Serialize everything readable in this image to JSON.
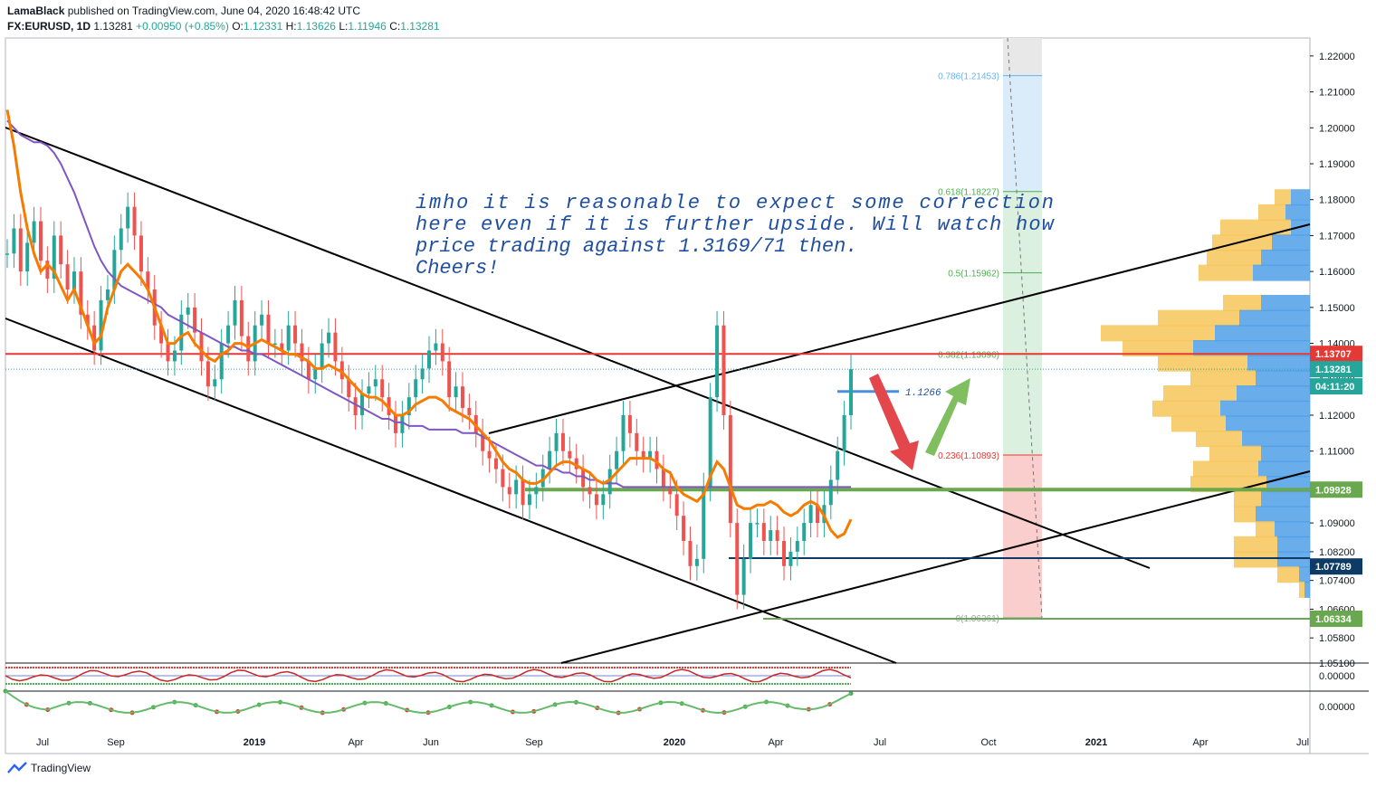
{
  "header": {
    "author": "LamaBlack",
    "published": "published on TradingView.com, June 04, 2020 16:48:42 UTC",
    "symbol": "FX:EURUSD, 1D",
    "last": "1.13281",
    "change": "+0.00950 (+0.85%)",
    "o_label": "O:",
    "o": "1.12331",
    "h_label": "H:",
    "h": "1.13626",
    "l_label": "L:",
    "l": "1.11946",
    "c_label": "C:",
    "c": "1.13281"
  },
  "footer": {
    "brand": "TradingView"
  },
  "colors": {
    "up": "#26a69a",
    "down": "#ef5350",
    "ema": "#f57c00",
    "sma": "#7e57c2",
    "resistance": "#e53935",
    "support": "#6aa84f",
    "navy": "#0d3b66",
    "fib_red": "#f8c9c6",
    "fib_green": "#d7eedb",
    "fib_blue": "#d6eaf8"
  },
  "annotation": {
    "lines": [
      "imho it is reasonable to expect some correction",
      "here even if it is further upside. Will watch how",
      "price trading against 1.3169/71 then.",
      "Cheers!"
    ],
    "level_label": "1.1266"
  },
  "chart_data": {
    "type": "line",
    "symbol": "FX:EURUSD",
    "timeframe": "1D",
    "ylim": [
      1.051,
      1.225
    ],
    "x_ticks": [
      "Jul",
      "Sep",
      "2019",
      "Apr",
      "Jun",
      "Sep",
      "2020",
      "Apr",
      "Jul",
      "Oct",
      "2021",
      "Apr",
      "Jul"
    ],
    "y_ticks": [
      "1.22000",
      "1.21000",
      "1.20000",
      "1.19000",
      "1.18000",
      "1.17000",
      "1.16000",
      "1.15000",
      "1.14000",
      "1.13000",
      "1.12000",
      "1.11000",
      "1.10000",
      "1.09000",
      "1.08200",
      "1.07400",
      "1.06600",
      "1.05800",
      "1.05100"
    ],
    "price_labels": [
      {
        "text": "1.13707",
        "role": "resistance"
      },
      {
        "text": "1.13281",
        "role": "last"
      },
      {
        "text": "04:11:20",
        "role": "countdown"
      },
      {
        "text": "1.09928",
        "role": "support"
      },
      {
        "text": "1.07789",
        "role": "navy"
      },
      {
        "text": "1.06334",
        "role": "support"
      }
    ],
    "fib_levels": [
      {
        "label": "0.786(1.21453)",
        "value": 1.21453
      },
      {
        "label": "0.618(1.18227)",
        "value": 1.18227
      },
      {
        "label": "0.5(1.15962)",
        "value": 1.15962
      },
      {
        "label": "0.382(1.13696)",
        "value": 1.13696
      },
      {
        "label": "0.236(1.10893)",
        "value": 1.10893
      },
      {
        "label": "0(1.06361)",
        "value": 1.06361
      }
    ],
    "horizontal_levels": [
      1.13707,
      1.09928,
      1.07789,
      1.06334,
      1.1266
    ],
    "price_series": [
      1.165,
      1.172,
      1.16,
      1.168,
      1.174,
      1.163,
      1.158,
      1.17,
      1.162,
      1.155,
      1.16,
      1.148,
      1.145,
      1.138,
      1.152,
      1.155,
      1.166,
      1.172,
      1.178,
      1.17,
      1.16,
      1.155,
      1.145,
      1.14,
      1.135,
      1.138,
      1.148,
      1.15,
      1.143,
      1.135,
      1.128,
      1.13,
      1.14,
      1.145,
      1.152,
      1.142,
      1.135,
      1.145,
      1.148,
      1.14,
      1.14,
      1.138,
      1.145,
      1.14,
      1.135,
      1.13,
      1.133,
      1.14,
      1.143,
      1.135,
      1.13,
      1.125,
      1.12,
      1.126,
      1.128,
      1.13,
      1.125,
      1.12,
      1.115,
      1.12,
      1.125,
      1.13,
      1.133,
      1.138,
      1.14,
      1.135,
      1.125,
      1.128,
      1.122,
      1.12,
      1.115,
      1.11,
      1.108,
      1.105,
      1.1,
      1.098,
      1.102,
      1.095,
      1.098,
      1.1,
      1.105,
      1.11,
      1.115,
      1.11,
      1.108,
      1.105,
      1.1,
      1.098,
      1.095,
      1.098,
      1.105,
      1.11,
      1.12,
      1.115,
      1.11,
      1.108,
      1.11,
      1.105,
      1.1,
      1.098,
      1.092,
      1.085,
      1.078,
      1.08,
      1.1,
      1.125,
      1.145,
      1.12,
      1.09,
      1.07,
      1.08,
      1.09,
      1.09,
      1.085,
      1.088,
      1.085,
      1.078,
      1.082,
      1.085,
      1.09,
      1.095,
      1.09,
      1.095,
      1.102,
      1.11,
      1.12,
      1.1328
    ],
    "ema_series": [
      1.205,
      1.195,
      1.182,
      1.172,
      1.165,
      1.16,
      1.162,
      1.16,
      1.156,
      1.152,
      1.155,
      1.15,
      1.145,
      1.14,
      1.142,
      1.15,
      1.155,
      1.16,
      1.162,
      1.16,
      1.158,
      1.155,
      1.15,
      1.145,
      1.14,
      1.14,
      1.142,
      1.143,
      1.14,
      1.138,
      1.136,
      1.135,
      1.137,
      1.138,
      1.14,
      1.14,
      1.139,
      1.14,
      1.141,
      1.14,
      1.139,
      1.138,
      1.137,
      1.137,
      1.136,
      1.135,
      1.133,
      1.133,
      1.134,
      1.133,
      1.132,
      1.13,
      1.128,
      1.126,
      1.125,
      1.125,
      1.124,
      1.122,
      1.12,
      1.12,
      1.121,
      1.123,
      1.124,
      1.125,
      1.125,
      1.124,
      1.122,
      1.121,
      1.12,
      1.119,
      1.117,
      1.115,
      1.113,
      1.11,
      1.107,
      1.105,
      1.104,
      1.102,
      1.101,
      1.101,
      1.102,
      1.104,
      1.106,
      1.107,
      1.107,
      1.106,
      1.105,
      1.104,
      1.102,
      1.101,
      1.102,
      1.104,
      1.106,
      1.108,
      1.108,
      1.108,
      1.108,
      1.107,
      1.105,
      1.104,
      1.1,
      1.098,
      1.097,
      1.096,
      1.098,
      1.103,
      1.107,
      1.105,
      1.1,
      1.095,
      1.094,
      1.094,
      1.095,
      1.095,
      1.096,
      1.095,
      1.093,
      1.092,
      1.093,
      1.095,
      1.096,
      1.095,
      1.092,
      1.088,
      1.086,
      1.087,
      1.091
    ],
    "sma_series": [
      1.202,
      1.2,
      1.198,
      1.197,
      1.196,
      1.196,
      1.195,
      1.193,
      1.19,
      1.186,
      1.182,
      1.177,
      1.172,
      1.167,
      1.163,
      1.16,
      1.158,
      1.156,
      1.155,
      1.154,
      1.153,
      1.152,
      1.151,
      1.15,
      1.148,
      1.147,
      1.146,
      1.145,
      1.144,
      1.143,
      1.142,
      1.141,
      1.14,
      1.139,
      1.139,
      1.138,
      1.138,
      1.137,
      1.137,
      1.136,
      1.135,
      1.134,
      1.133,
      1.132,
      1.131,
      1.13,
      1.129,
      1.128,
      1.127,
      1.126,
      1.125,
      1.124,
      1.123,
      1.122,
      1.121,
      1.12,
      1.119,
      1.119,
      1.118,
      1.118,
      1.117,
      1.117,
      1.117,
      1.116,
      1.116,
      1.116,
      1.116,
      1.116,
      1.115,
      1.115,
      1.115,
      1.114,
      1.113,
      1.112,
      1.111,
      1.11,
      1.109,
      1.108,
      1.107,
      1.106,
      1.106,
      1.105,
      1.105,
      1.104,
      1.104,
      1.103,
      1.103,
      1.102,
      1.102,
      1.101,
      1.101,
      1.101,
      1.1,
      1.1,
      1.1,
      1.1,
      1.1,
      1.1,
      1.1,
      1.1,
      1.1,
      1.1,
      1.1,
      1.1,
      1.1,
      1.1,
      1.1,
      1.1,
      1.1,
      1.1,
      1.1,
      1.1,
      1.1,
      1.1,
      1.1,
      1.1,
      1.1,
      1.1,
      1.1,
      1.1,
      1.1,
      1.1,
      1.1,
      1.1,
      1.1,
      1.1,
      1.1
    ],
    "volume_profile": [
      {
        "price": 1.1805,
        "up": 0.3,
        "down": 0.35
      },
      {
        "price": 1.1763,
        "up": 0.5,
        "down": 0.45
      },
      {
        "price": 1.1721,
        "up": 1.3,
        "down": 0.35
      },
      {
        "price": 1.1679,
        "up": 1.1,
        "down": 0.7
      },
      {
        "price": 1.1637,
        "up": 1.0,
        "down": 0.9
      },
      {
        "price": 1.1595,
        "up": 1.0,
        "down": 1.05
      },
      {
        "price": 1.1511,
        "up": 0.7,
        "down": 0.9
      },
      {
        "price": 1.1469,
        "up": 1.5,
        "down": 1.3
      },
      {
        "price": 1.1427,
        "up": 2.1,
        "down": 1.75
      },
      {
        "price": 1.1385,
        "up": 1.3,
        "down": 2.15
      },
      {
        "price": 1.1343,
        "up": 1.65,
        "down": 1.15
      },
      {
        "price": 1.1301,
        "up": 1.2,
        "down": 1.0
      },
      {
        "price": 1.1259,
        "up": 1.35,
        "down": 1.35
      },
      {
        "price": 1.1217,
        "up": 1.25,
        "down": 1.65
      },
      {
        "price": 1.1175,
        "up": 1.0,
        "down": 1.55
      },
      {
        "price": 1.1133,
        "up": 0.85,
        "down": 1.25
      },
      {
        "price": 1.1091,
        "up": 0.95,
        "down": 0.9
      },
      {
        "price": 1.1049,
        "up": 1.2,
        "down": 0.95
      },
      {
        "price": 1.1007,
        "up": 1.4,
        "down": 0.8
      },
      {
        "price": 1.0965,
        "up": 0.5,
        "down": 0.9
      },
      {
        "price": 1.0923,
        "up": 0.4,
        "down": 1.0
      },
      {
        "price": 1.0881,
        "up": 0.35,
        "down": 0.65
      },
      {
        "price": 1.0839,
        "up": 0.8,
        "down": 0.6
      },
      {
        "price": 1.0797,
        "up": 0.8,
        "down": 0.6
      },
      {
        "price": 1.0755,
        "up": 0.4,
        "down": 0.2
      },
      {
        "price": 1.0713,
        "up": 0.1,
        "down": 0.1
      }
    ],
    "oscillator1": {
      "ylabel": "0.00000"
    },
    "oscillator2": {
      "ylabel": "0.00000"
    }
  }
}
